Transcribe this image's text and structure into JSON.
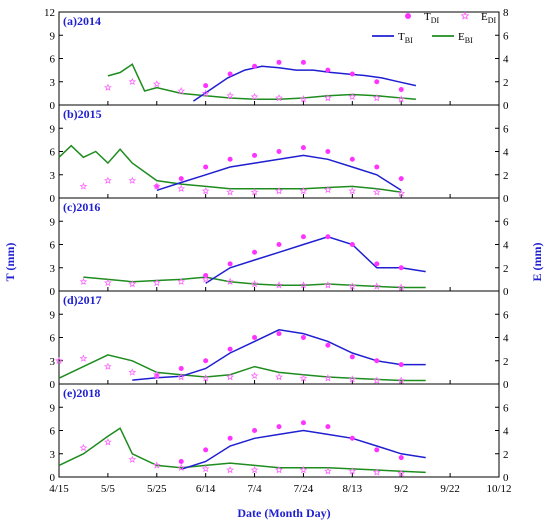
{
  "chart_data": {
    "type": "line",
    "xlabel": "Date (Month Day)",
    "ylabel_left": "T (mm)",
    "ylabel_right": "E (mm)",
    "x_ticks": [
      "4/15",
      "5/5",
      "5/25",
      "6/14",
      "7/4",
      "7/24",
      "8/13",
      "9/2",
      "9/22",
      "10/12"
    ],
    "x_range": [
      "4/15",
      "10/12"
    ],
    "y_left_range": [
      0,
      12
    ],
    "y_right_range": [
      0,
      8
    ],
    "y_left_ticks": [
      "0",
      "3",
      "6",
      "9",
      "12"
    ],
    "y_right_ticks": [
      "0",
      "2",
      "4",
      "6",
      "8"
    ],
    "legend": [
      {
        "key": "TDI",
        "base": "T",
        "sub": "DI",
        "style": "filled-dot",
        "color": "#ff33ff"
      },
      {
        "key": "EDI",
        "base": "E",
        "sub": "DI",
        "style": "open-star",
        "color": "#ff66ff"
      },
      {
        "key": "TBI",
        "base": "T",
        "sub": "BI",
        "style": "line",
        "color": "#1f1fd1"
      },
      {
        "key": "EBI",
        "base": "E",
        "sub": "BI",
        "style": "line",
        "color": "#1e8c1e"
      }
    ],
    "panels": [
      {
        "label": "(a)2014",
        "TBI": {
          "x": [
            55,
            62,
            69,
            76,
            83,
            90,
            97,
            104,
            111,
            118,
            125,
            132,
            139,
            146
          ],
          "y": [
            0.5,
            2.0,
            3.5,
            4.5,
            5.0,
            4.8,
            4.5,
            4.5,
            4.2,
            4.0,
            3.8,
            3.5,
            3.0,
            2.5
          ]
        },
        "EBI": {
          "x": [
            20,
            25,
            30,
            35,
            40,
            50,
            60,
            70,
            80,
            90,
            100,
            110,
            120,
            130,
            140,
            146
          ],
          "y": [
            2.5,
            2.8,
            3.5,
            1.2,
            1.5,
            1.0,
            0.8,
            0.6,
            0.5,
            0.5,
            0.6,
            0.8,
            0.9,
            0.8,
            0.6,
            0.5
          ]
        },
        "TDI": {
          "x": [
            60,
            70,
            80,
            90,
            100,
            110,
            120,
            130,
            140
          ],
          "y": [
            2.5,
            4.0,
            5.0,
            5.5,
            5.5,
            4.5,
            4.0,
            3.0,
            2.0
          ]
        },
        "EDI": {
          "x": [
            20,
            30,
            40,
            50,
            60,
            70,
            80,
            90,
            100,
            110,
            120,
            130,
            140
          ],
          "y": [
            1.5,
            2.0,
            1.8,
            1.2,
            1.0,
            0.8,
            0.7,
            0.6,
            0.5,
            0.6,
            0.7,
            0.6,
            0.5
          ]
        }
      },
      {
        "label": "(b)2015",
        "TBI": {
          "x": [
            40,
            50,
            60,
            70,
            80,
            90,
            100,
            110,
            120,
            130,
            140
          ],
          "y": [
            1.0,
            2.0,
            3.0,
            4.0,
            4.5,
            5.0,
            5.5,
            5.0,
            4.0,
            3.0,
            1.0
          ]
        },
        "EBI": {
          "x": [
            0,
            5,
            10,
            15,
            20,
            25,
            30,
            40,
            50,
            60,
            70,
            80,
            90,
            100,
            110,
            120,
            130,
            140
          ],
          "y": [
            3.5,
            4.5,
            3.5,
            4.0,
            3.0,
            4.2,
            3.0,
            1.5,
            1.2,
            1.0,
            0.8,
            0.8,
            0.8,
            0.8,
            0.9,
            1.0,
            0.8,
            0.5
          ]
        },
        "TDI": {
          "x": [
            40,
            50,
            60,
            70,
            80,
            90,
            100,
            110,
            120,
            130,
            140
          ],
          "y": [
            1.5,
            2.5,
            4.0,
            5.0,
            5.5,
            6.0,
            6.5,
            6.0,
            5.0,
            4.0,
            2.5
          ]
        },
        "EDI": {
          "x": [
            10,
            20,
            30,
            40,
            50,
            60,
            70,
            80,
            90,
            100,
            110,
            120,
            130,
            140
          ],
          "y": [
            1.0,
            1.5,
            1.5,
            1.0,
            0.8,
            0.6,
            0.5,
            0.5,
            0.6,
            0.6,
            0.7,
            0.6,
            0.5,
            0.4
          ]
        }
      },
      {
        "label": "(c)2016",
        "TBI": {
          "x": [
            60,
            70,
            80,
            90,
            100,
            110,
            120,
            130,
            140,
            150
          ],
          "y": [
            1.0,
            3.0,
            4.0,
            5.0,
            6.0,
            7.0,
            6.0,
            3.0,
            3.0,
            2.5
          ]
        },
        "EBI": {
          "x": [
            10,
            20,
            30,
            40,
            50,
            60,
            70,
            80,
            90,
            100,
            110,
            120,
            130,
            140,
            150
          ],
          "y": [
            1.2,
            1.0,
            0.8,
            0.9,
            1.0,
            1.2,
            0.8,
            0.6,
            0.5,
            0.5,
            0.6,
            0.5,
            0.4,
            0.3,
            0.3
          ]
        },
        "TDI": {
          "x": [
            60,
            70,
            80,
            90,
            100,
            110,
            120,
            130,
            140
          ],
          "y": [
            2.0,
            3.5,
            5.0,
            6.0,
            7.0,
            7.0,
            6.0,
            3.5,
            3.0
          ]
        },
        "EDI": {
          "x": [
            10,
            20,
            30,
            40,
            50,
            60,
            70,
            80,
            90,
            100,
            110,
            120,
            130,
            140
          ],
          "y": [
            0.8,
            0.7,
            0.6,
            0.7,
            0.8,
            1.0,
            0.8,
            0.6,
            0.5,
            0.5,
            0.5,
            0.4,
            0.4,
            0.3
          ]
        }
      },
      {
        "label": "(d)2017",
        "TBI": {
          "x": [
            30,
            40,
            50,
            60,
            70,
            80,
            90,
            100,
            110,
            120,
            130,
            140,
            150
          ],
          "y": [
            0.5,
            0.8,
            1.0,
            2.0,
            4.0,
            5.5,
            7.0,
            6.5,
            5.5,
            4.0,
            3.0,
            2.5,
            2.5
          ]
        },
        "EBI": {
          "x": [
            0,
            10,
            20,
            30,
            40,
            50,
            60,
            70,
            80,
            90,
            100,
            110,
            120,
            130,
            140,
            150
          ],
          "y": [
            0.5,
            1.5,
            2.5,
            2.0,
            1.0,
            0.8,
            0.6,
            0.8,
            1.5,
            1.0,
            0.8,
            0.6,
            0.5,
            0.4,
            0.3,
            0.3
          ]
        },
        "TDI": {
          "x": [
            40,
            50,
            60,
            70,
            80,
            90,
            100,
            110,
            120,
            130,
            140
          ],
          "y": [
            1.0,
            2.0,
            3.0,
            4.5,
            6.0,
            6.5,
            6.0,
            5.0,
            3.5,
            3.0,
            2.5
          ]
        },
        "EDI": {
          "x": [
            0,
            10,
            20,
            30,
            40,
            50,
            60,
            70,
            80,
            90,
            100,
            110,
            120,
            130,
            140
          ],
          "y": [
            2.0,
            2.2,
            1.5,
            1.0,
            0.8,
            0.6,
            0.5,
            0.6,
            0.7,
            0.6,
            0.5,
            0.5,
            0.4,
            0.3,
            0.3
          ]
        }
      },
      {
        "label": "(e)2018",
        "TBI": {
          "x": [
            50,
            60,
            70,
            80,
            90,
            100,
            110,
            120,
            130,
            140,
            150
          ],
          "y": [
            1.0,
            2.0,
            4.0,
            5.0,
            5.5,
            6.0,
            5.5,
            5.0,
            4.0,
            3.0,
            2.5
          ]
        },
        "EBI": {
          "x": [
            0,
            10,
            20,
            25,
            30,
            40,
            50,
            60,
            70,
            80,
            90,
            100,
            110,
            120,
            130,
            140,
            150
          ],
          "y": [
            1.0,
            2.0,
            3.5,
            4.2,
            2.0,
            1.0,
            0.8,
            1.0,
            1.2,
            1.0,
            0.8,
            0.8,
            0.8,
            0.7,
            0.6,
            0.5,
            0.4
          ]
        },
        "TDI": {
          "x": [
            50,
            60,
            70,
            80,
            90,
            100,
            110,
            120,
            130,
            140
          ],
          "y": [
            2.0,
            3.5,
            5.0,
            6.0,
            6.5,
            7.0,
            6.5,
            5.0,
            3.5,
            2.5
          ]
        },
        "EDI": {
          "x": [
            10,
            20,
            30,
            40,
            50,
            60,
            70,
            80,
            90,
            100,
            110,
            120,
            130,
            140
          ],
          "y": [
            2.5,
            3.0,
            1.5,
            1.0,
            0.8,
            0.7,
            0.6,
            0.6,
            0.6,
            0.6,
            0.5,
            0.5,
            0.4,
            0.3
          ]
        }
      }
    ]
  }
}
